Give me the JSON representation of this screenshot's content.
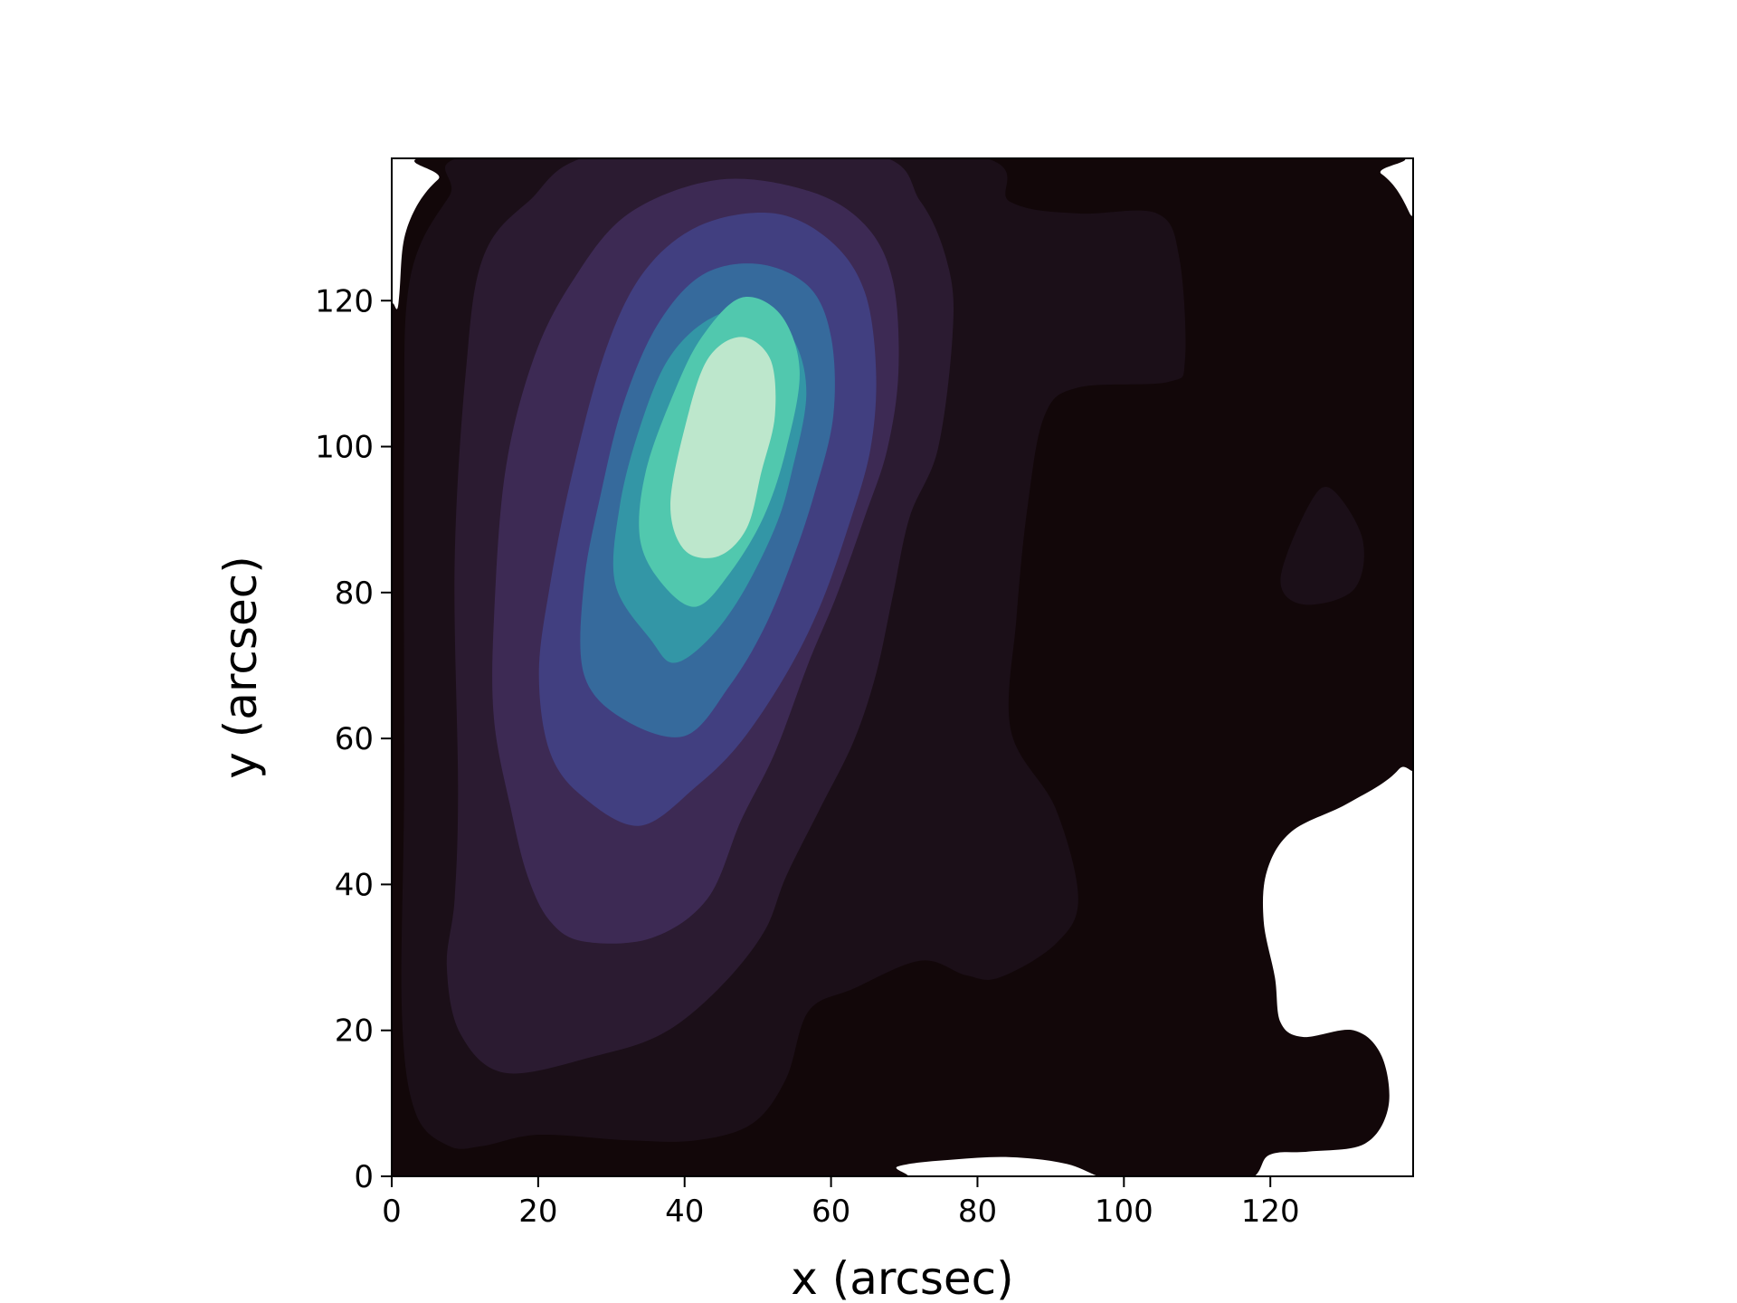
{
  "chart_data": {
    "type": "contour",
    "xlabel": "x (arcsec)",
    "ylabel": "y (arcsec)",
    "xlim": [
      0,
      139.5
    ],
    "ylim": [
      0,
      139.5
    ],
    "xticks": [
      0,
      20,
      40,
      60,
      80,
      100,
      120
    ],
    "yticks": [
      0,
      20,
      40,
      60,
      80,
      100,
      120
    ],
    "colors": [
      "#120709",
      "#1b0f18",
      "#2b1b31",
      "#3d2a54",
      "#413f80",
      "#366a9c",
      "#3396a6",
      "#51c8ae",
      "#bde7cc"
    ]
  }
}
